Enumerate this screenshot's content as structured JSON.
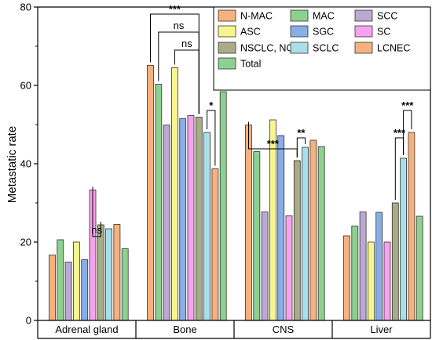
{
  "chart_data": {
    "type": "bar",
    "ylabel": "Metastatic rate",
    "xlabel": "",
    "ylim": [
      0,
      80
    ],
    "yticks": [
      0,
      20,
      40,
      60,
      80
    ],
    "categories": [
      "Adrenal gland",
      "Bone",
      "CNS",
      "Liver"
    ],
    "series": [
      {
        "name": "N-MAC",
        "color": "#f6b17c",
        "values": [
          16.7,
          65.1,
          49.9,
          21.6
        ]
      },
      {
        "name": "MAC",
        "color": "#8ed18f",
        "values": [
          20.6,
          60.3,
          43.1,
          24.1
        ]
      },
      {
        "name": "SCC",
        "color": "#bba9d2",
        "values": [
          14.9,
          49.9,
          27.7,
          27.7
        ]
      },
      {
        "name": "ASC",
        "color": "#f7f58e",
        "values": [
          20.0,
          64.5,
          51.2,
          20.0
        ]
      },
      {
        "name": "SGC",
        "color": "#89aee6",
        "values": [
          15.5,
          51.5,
          47.2,
          27.6
        ]
      },
      {
        "name": "SC",
        "color": "#f7a2ef",
        "values": [
          33.3,
          52.3,
          26.7,
          20.0
        ]
      },
      {
        "name": "NSCLC, NOS",
        "color": "#a9ac86",
        "values": [
          24.4,
          51.9,
          40.8,
          30.0
        ]
      },
      {
        "name": "SCLC",
        "color": "#a8dfe8",
        "values": [
          23.4,
          48.0,
          44.2,
          41.4
        ]
      },
      {
        "name": "LCNEC",
        "color": "#f6b17c",
        "values": [
          24.5,
          38.7,
          46.0,
          48.0
        ]
      },
      {
        "name": "Total",
        "color": "#8ed18f",
        "values": [
          18.3,
          58.4,
          44.4,
          26.6
        ]
      }
    ],
    "annotations": [
      {
        "category": 0,
        "from_series": 5,
        "to_series": 6,
        "label": "ns"
      },
      {
        "category": 1,
        "from_series": 0,
        "to_series": 6,
        "label": "***"
      },
      {
        "category": 1,
        "from_series": 1,
        "to_series": 6,
        "label": "ns"
      },
      {
        "category": 1,
        "from_series": 3,
        "to_series": 6,
        "label": "ns"
      },
      {
        "category": 1,
        "from_series": 7,
        "to_series": 8,
        "label": "*"
      },
      {
        "category": 2,
        "from_series": 0,
        "to_series": 6,
        "label": "***"
      },
      {
        "category": 2,
        "from_series": 6,
        "to_series": 7,
        "label": "**"
      },
      {
        "category": 3,
        "from_series": 7,
        "to_series": 8,
        "label": "***"
      },
      {
        "category": 3,
        "from_series": 6,
        "to_series": 7,
        "label": "***"
      }
    ],
    "legend_position": "top-right",
    "grid": false
  }
}
